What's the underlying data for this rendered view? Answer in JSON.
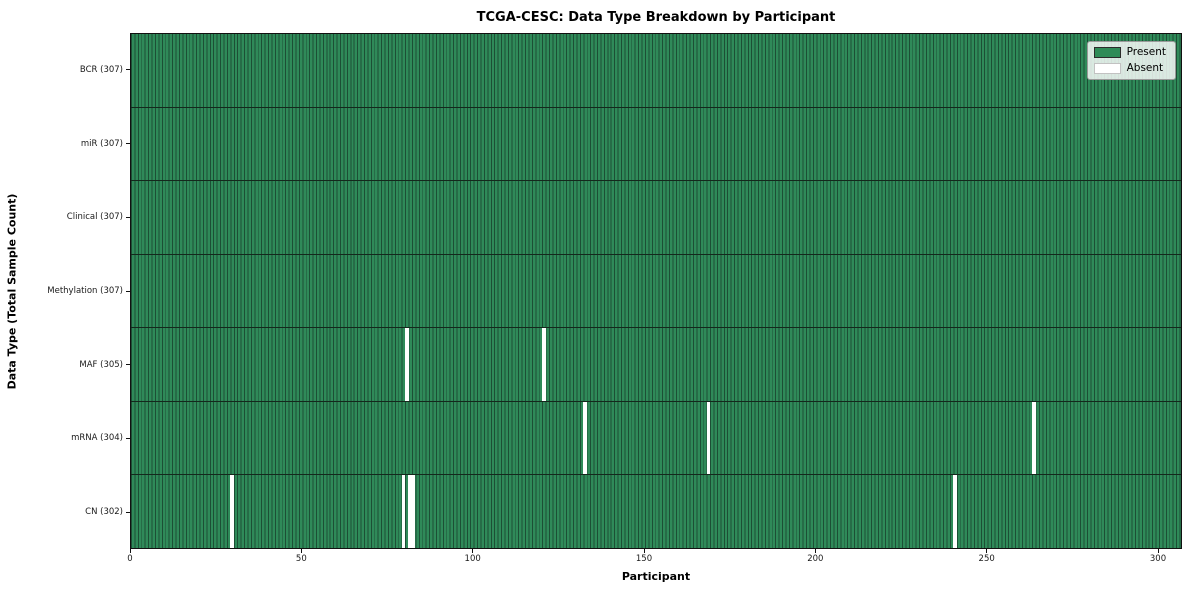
{
  "chart_data": {
    "type": "heatmap",
    "title": "TCGA-CESC: Data Type Breakdown by Participant",
    "xlabel": "Participant",
    "ylabel": "Data Type (Total Sample Count)",
    "total_participants": 307,
    "xlim": [
      0,
      307
    ],
    "x_ticks": [
      0,
      50,
      100,
      150,
      200,
      250,
      300
    ],
    "grid": false,
    "legend": {
      "position": "upper right",
      "entries": [
        {
          "label": "Present",
          "color": "#2e8b57"
        },
        {
          "label": "Absent",
          "color": "#ffffff"
        }
      ]
    },
    "rows": [
      {
        "category": "BCR (307)",
        "present_count": 307,
        "absent_participants": []
      },
      {
        "category": "miR (307)",
        "present_count": 307,
        "absent_participants": []
      },
      {
        "category": "Clinical (307)",
        "present_count": 307,
        "absent_participants": []
      },
      {
        "category": "Methylation (307)",
        "present_count": 307,
        "absent_participants": []
      },
      {
        "category": "MAF (305)",
        "present_count": 305,
        "absent_participants": [
          80,
          120
        ]
      },
      {
        "category": "mRNA (304)",
        "present_count": 304,
        "absent_participants": [
          132,
          168,
          263
        ]
      },
      {
        "category": "CN (302)",
        "present_count": 302,
        "absent_participants": [
          29,
          79,
          81,
          82,
          240
        ]
      }
    ],
    "colors": {
      "present": "#2e8b57",
      "absent": "#ffffff",
      "cell_edge": "#1c4f35"
    }
  }
}
